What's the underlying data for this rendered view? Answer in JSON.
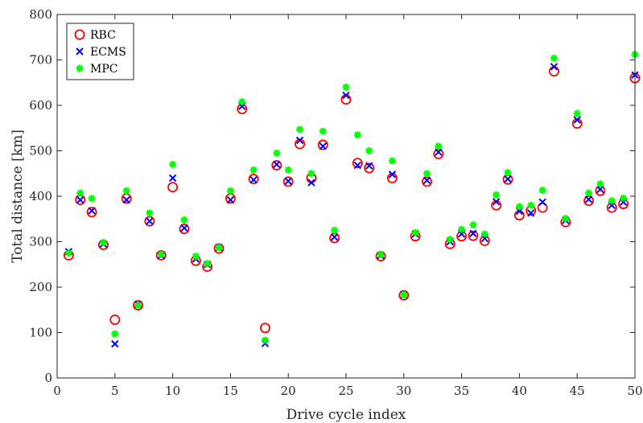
{
  "chart_data": {
    "type": "scatter",
    "title": "",
    "xlabel": "Drive cycle index",
    "ylabel": "Total distance [km]",
    "xlim": [
      0,
      50
    ],
    "ylim": [
      0,
      800
    ],
    "xticks": [
      0,
      5,
      10,
      15,
      20,
      25,
      30,
      35,
      40,
      45,
      50
    ],
    "yticks": [
      0,
      100,
      200,
      300,
      400,
      500,
      600,
      700,
      800
    ],
    "grid": false,
    "legend_position": "top-left",
    "x": [
      1,
      2,
      3,
      4,
      5,
      6,
      7,
      8,
      9,
      10,
      11,
      12,
      13,
      14,
      15,
      16,
      17,
      18,
      19,
      20,
      21,
      22,
      23,
      24,
      25,
      26,
      27,
      28,
      29,
      30,
      31,
      32,
      33,
      34,
      35,
      36,
      37,
      38,
      39,
      40,
      41,
      42,
      43,
      44,
      45,
      46,
      47,
      48,
      49,
      50
    ],
    "series": [
      {
        "name": "RBC",
        "marker": "circle",
        "color": "#ff0000",
        "values": [
          270,
          392,
          365,
          293,
          128,
          395,
          160,
          345,
          270,
          420,
          328,
          258,
          245,
          285,
          395,
          592,
          438,
          110,
          468,
          432,
          515,
          440,
          513,
          308,
          613,
          473,
          462,
          268,
          440,
          182,
          312,
          432,
          493,
          295,
          312,
          313,
          302,
          380,
          437,
          358,
          368,
          375,
          675,
          343,
          560,
          390,
          412,
          375,
          383,
          660
        ]
      },
      {
        "name": "ECMS",
        "marker": "x",
        "color": "#0000ff",
        "values": [
          278,
          392,
          368,
          295,
          75,
          392,
          162,
          345,
          270,
          440,
          330,
          262,
          250,
          287,
          392,
          598,
          436,
          76,
          470,
          433,
          523,
          430,
          510,
          310,
          622,
          468,
          467,
          270,
          448,
          183,
          317,
          435,
          497,
          300,
          317,
          318,
          307,
          388,
          438,
          367,
          363,
          387,
          685,
          347,
          568,
          393,
          415,
          380,
          387,
          667
        ]
      },
      {
        "name": "MPC",
        "marker": "asterisk",
        "color": "#00ff00",
        "values": [
          275,
          407,
          395,
          298,
          97,
          412,
          160,
          363,
          272,
          470,
          348,
          268,
          252,
          287,
          412,
          608,
          458,
          83,
          495,
          458,
          547,
          450,
          543,
          325,
          640,
          535,
          500,
          272,
          478,
          183,
          320,
          450,
          510,
          305,
          327,
          337,
          317,
          403,
          452,
          377,
          380,
          413,
          704,
          351,
          582,
          407,
          427,
          390,
          396,
          712
        ]
      }
    ]
  }
}
